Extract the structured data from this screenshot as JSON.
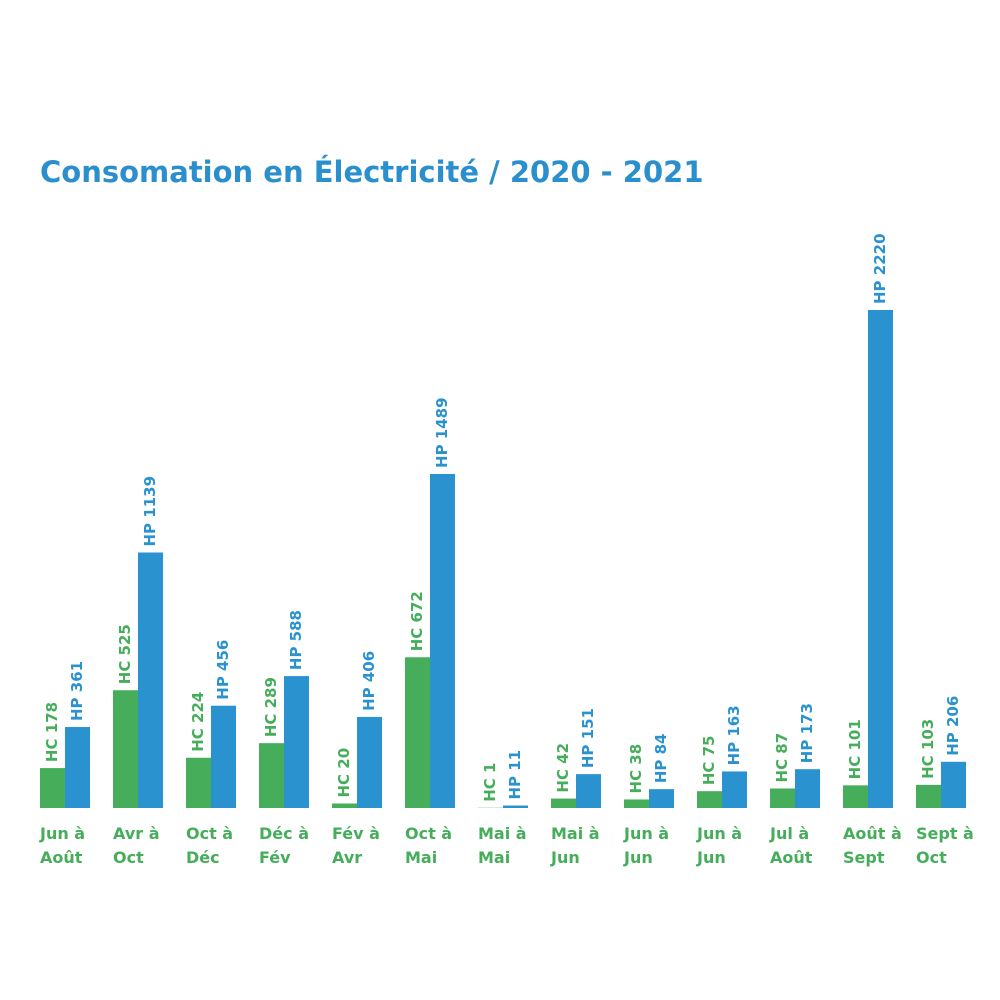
{
  "chart_data": {
    "type": "bar",
    "title": "Consomation en Électricité / 2020 - 2021",
    "categories": [
      "Jun à Août",
      "Avr à Oct",
      "Oct à Déc",
      "Déc à Fév",
      "Fév à Avr",
      "Oct à Mai",
      "Mai à Mai",
      "Mai à Jun",
      "Jun à Jun",
      "Jun à Jun",
      "Jul à Août",
      "Août à Sept",
      "Sept à Oct"
    ],
    "series": [
      {
        "color": "#46ad5b",
        "values": [
          178,
          525,
          224,
          289,
          20,
          672,
          1,
          42,
          38,
          75,
          87,
          101,
          103
        ],
        "value_labels": [
          "HC 178",
          "HC 525",
          "HC 224",
          "HC 289",
          "HC 20",
          "HC 672",
          "HC 1",
          "HC 42",
          "HC 38",
          "HC 75",
          "HC 87",
          "HC 101",
          "HC 103"
        ]
      },
      {
        "color": "#2a93cf",
        "values": [
          361,
          1139,
          456,
          588,
          406,
          1489,
          11,
          151,
          84,
          163,
          173,
          2220,
          206
        ],
        "value_labels": [
          "HP 361",
          "HP 1139",
          "HP 456",
          "HP 588",
          "HP 406",
          "HP 1489",
          "HP 11",
          "HP 151",
          "HP 84",
          "HP 163",
          "HP 173",
          "HP 2220",
          "HP 206"
        ]
      }
    ]
  }
}
